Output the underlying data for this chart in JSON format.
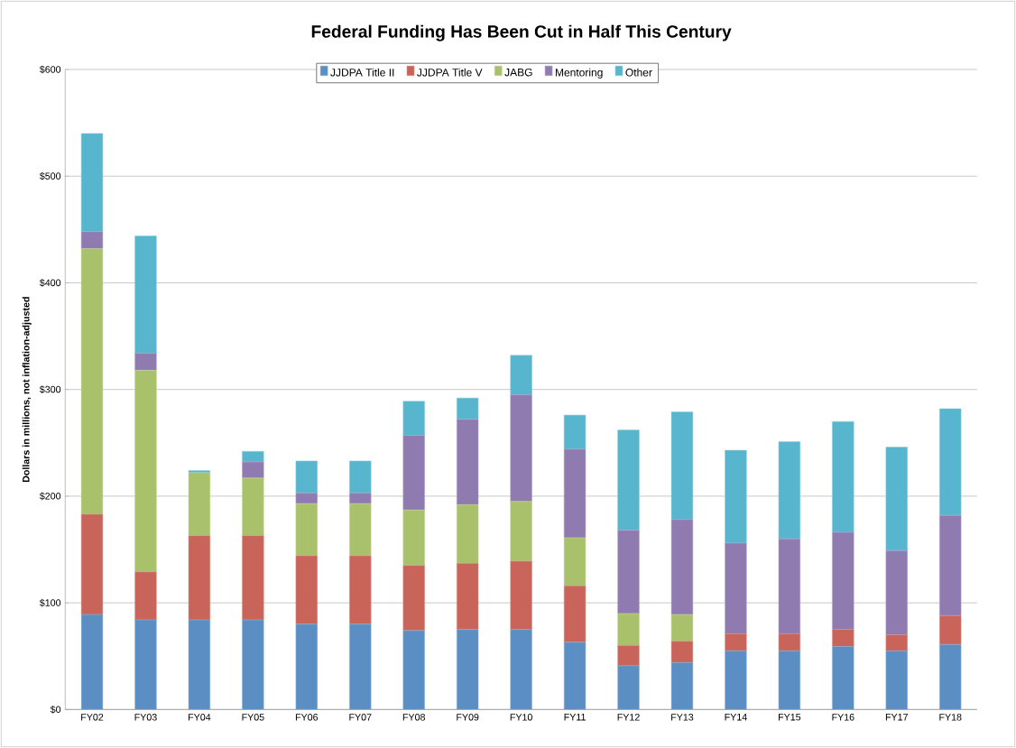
{
  "chart_data": {
    "type": "bar",
    "stacked": true,
    "title": "Federal Funding Has Been Cut in Half This Century",
    "ylabel": "Dollars in millions, not inflation-adjusted",
    "categories": [
      "FY02",
      "FY03",
      "FY04",
      "FY05",
      "FY06",
      "FY07",
      "FY08",
      "FY09",
      "FY10",
      "FY11",
      "FY12",
      "FY13",
      "FY14",
      "FY15",
      "FY16",
      "FY17",
      "FY18"
    ],
    "series": [
      {
        "name": "JJDPA Title II",
        "color": "#5b8fc4",
        "values": [
          89,
          84,
          84,
          84,
          80,
          80,
          74,
          75,
          75,
          63,
          41,
          44,
          55,
          55,
          59,
          55,
          61
        ]
      },
      {
        "name": "JJDPA Title V",
        "color": "#c9645a",
        "values": [
          94,
          45,
          79,
          79,
          64,
          64,
          61,
          62,
          64,
          53,
          19,
          20,
          16,
          16,
          16,
          15,
          27
        ]
      },
      {
        "name": "JABG",
        "color": "#a9c16a",
        "values": [
          249,
          189,
          59,
          54,
          49,
          49,
          52,
          55,
          56,
          45,
          30,
          25,
          0,
          0,
          0,
          0,
          0
        ]
      },
      {
        "name": "Mentoring",
        "color": "#8f7bb0",
        "values": [
          16,
          16,
          0,
          15,
          10,
          10,
          70,
          80,
          100,
          83,
          78,
          89,
          85,
          89,
          91,
          79,
          94
        ]
      },
      {
        "name": "Other",
        "color": "#57b6cd",
        "values": [
          92,
          110,
          2,
          10,
          30,
          30,
          32,
          20,
          37,
          32,
          94,
          101,
          87,
          91,
          104,
          97,
          100
        ]
      }
    ],
    "ylim": [
      0,
      600
    ],
    "yticks": [
      {
        "value": 0,
        "label": "$0"
      },
      {
        "value": 100,
        "label": "$100"
      },
      {
        "value": 200,
        "label": "$200"
      },
      {
        "value": 300,
        "label": "$300"
      },
      {
        "value": 400,
        "label": "$400"
      },
      {
        "value": 500,
        "label": "$500"
      },
      {
        "value": 600,
        "label": "$600"
      }
    ],
    "grid": "y",
    "legend": "top"
  }
}
